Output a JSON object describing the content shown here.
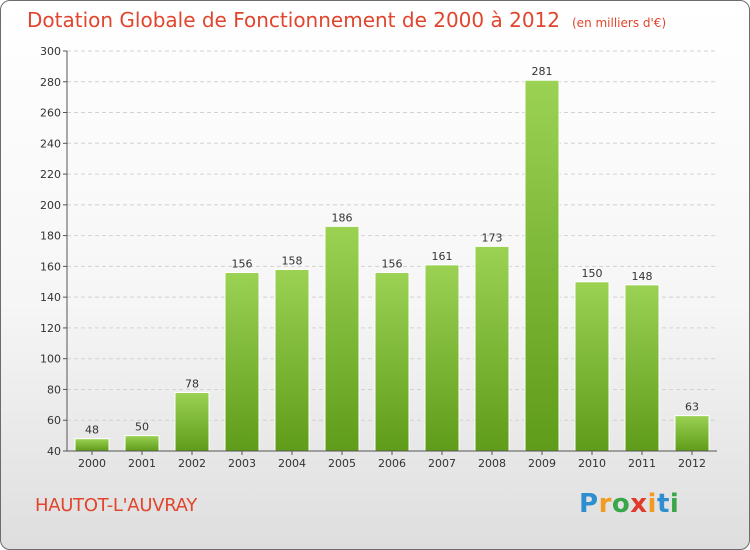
{
  "header": {
    "title": "Dotation Globale de Fonctionnement de 2000 à 2012",
    "subtitle": "(en milliers d'€)"
  },
  "commune": "HAUTOT-L'AUVRAY",
  "logo": {
    "text": "Proxiti",
    "letters": [
      {
        "char": "P",
        "color": "#2e8ecf"
      },
      {
        "char": "r",
        "color": "#f29a22"
      },
      {
        "char": "o",
        "color": "#3aa64a"
      },
      {
        "char": "x",
        "color": "#e03b2c"
      },
      {
        "char": "i",
        "color": "#f29a22"
      },
      {
        "char": "t",
        "color": "#2e8ecf"
      },
      {
        "char": "i",
        "color": "#3aa64a"
      }
    ]
  },
  "colors": {
    "title": "#e0462d",
    "bar_top": "#9bd254",
    "bar_bottom": "#5f9c19"
  },
  "chart_data": {
    "type": "bar",
    "categories": [
      "2000",
      "2001",
      "2002",
      "2003",
      "2004",
      "2005",
      "2006",
      "2007",
      "2008",
      "2009",
      "2010",
      "2011",
      "2012"
    ],
    "values": [
      48,
      50,
      78,
      156,
      158,
      186,
      156,
      161,
      173,
      281,
      150,
      148,
      63
    ],
    "ylim": [
      40,
      300
    ],
    "yticks": [
      40,
      60,
      80,
      100,
      120,
      140,
      160,
      180,
      200,
      220,
      240,
      260,
      280,
      300
    ],
    "grid": true
  }
}
